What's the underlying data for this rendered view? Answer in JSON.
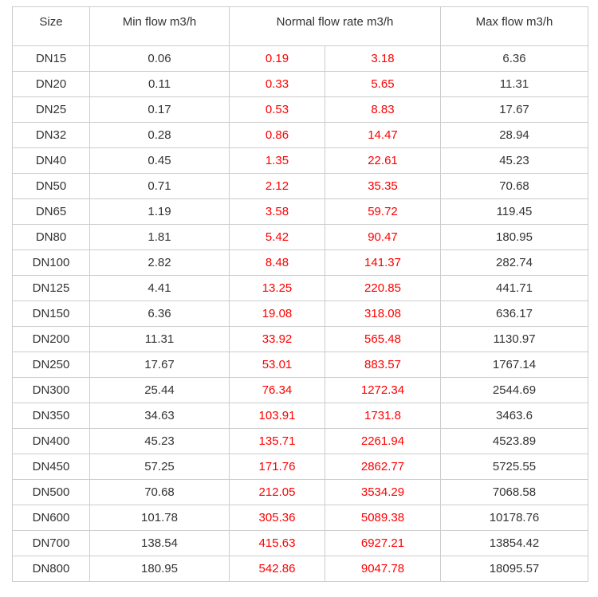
{
  "table": {
    "headers": {
      "size": "Size",
      "min_flow": "Min flow m3/h",
      "normal_flow": "Normal flow rate m3/h",
      "max_flow": "Max flow m3/h"
    },
    "rows": [
      {
        "size": "DN15",
        "min": "0.06",
        "normal_low": "0.19",
        "normal_high": "3.18",
        "max": "6.36"
      },
      {
        "size": "DN20",
        "min": "0.11",
        "normal_low": "0.33",
        "normal_high": "5.65",
        "max": "11.31"
      },
      {
        "size": "DN25",
        "min": "0.17",
        "normal_low": "0.53",
        "normal_high": "8.83",
        "max": "17.67"
      },
      {
        "size": "DN32",
        "min": "0.28",
        "normal_low": "0.86",
        "normal_high": "14.47",
        "max": "28.94"
      },
      {
        "size": "DN40",
        "min": "0.45",
        "normal_low": "1.35",
        "normal_high": "22.61",
        "max": "45.23"
      },
      {
        "size": "DN50",
        "min": "0.71",
        "normal_low": "2.12",
        "normal_high": "35.35",
        "max": "70.68"
      },
      {
        "size": "DN65",
        "min": "1.19",
        "normal_low": "3.58",
        "normal_high": "59.72",
        "max": "119.45"
      },
      {
        "size": "DN80",
        "min": "1.81",
        "normal_low": "5.42",
        "normal_high": "90.47",
        "max": "180.95"
      },
      {
        "size": "DN100",
        "min": "2.82",
        "normal_low": "8.48",
        "normal_high": "141.37",
        "max": "282.74"
      },
      {
        "size": "DN125",
        "min": "4.41",
        "normal_low": "13.25",
        "normal_high": "220.85",
        "max": "441.71"
      },
      {
        "size": "DN150",
        "min": "6.36",
        "normal_low": "19.08",
        "normal_high": "318.08",
        "max": "636.17"
      },
      {
        "size": "DN200",
        "min": "11.31",
        "normal_low": "33.92",
        "normal_high": "565.48",
        "max": "1130.97"
      },
      {
        "size": "DN250",
        "min": "17.67",
        "normal_low": "53.01",
        "normal_high": "883.57",
        "max": "1767.14"
      },
      {
        "size": "DN300",
        "min": "25.44",
        "normal_low": "76.34",
        "normal_high": "1272.34",
        "max": "2544.69"
      },
      {
        "size": "DN350",
        "min": "34.63",
        "normal_low": "103.91",
        "normal_high": "1731.8",
        "max": "3463.6"
      },
      {
        "size": "DN400",
        "min": "45.23",
        "normal_low": "135.71",
        "normal_high": "2261.94",
        "max": "4523.89"
      },
      {
        "size": "DN450",
        "min": "57.25",
        "normal_low": "171.76",
        "normal_high": "2862.77",
        "max": "5725.55"
      },
      {
        "size": "DN500",
        "min": "70.68",
        "normal_low": "212.05",
        "normal_high": "3534.29",
        "max": "7068.58"
      },
      {
        "size": "DN600",
        "min": "101.78",
        "normal_low": "305.36",
        "normal_high": "5089.38",
        "max": "10178.76"
      },
      {
        "size": "DN700",
        "min": "138.54",
        "normal_low": "415.63",
        "normal_high": "6927.21",
        "max": "13854.42"
      },
      {
        "size": "DN800",
        "min": "180.95",
        "normal_low": "542.86",
        "normal_high": "9047.78",
        "max": "18095.57"
      }
    ],
    "colors": {
      "normal_value_text": "#fe0000",
      "default_text": "#333333",
      "border": "#cccccc"
    }
  }
}
